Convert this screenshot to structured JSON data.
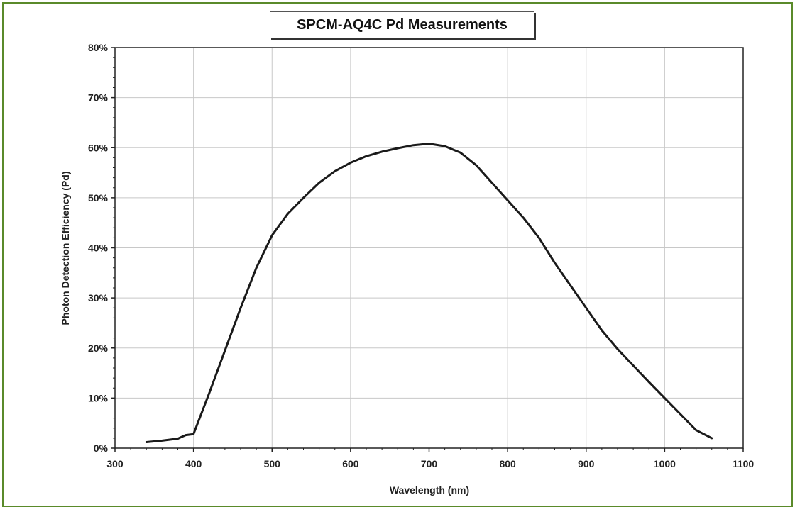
{
  "chart_data": {
    "type": "line",
    "title": "SPCM-AQ4C Pd Measurements",
    "xlabel": "Wavelength (nm)",
    "ylabel": "Photon Detection Efficiency  (Pd)",
    "xlim": [
      300,
      1100
    ],
    "ylim": [
      0,
      80
    ],
    "x_ticks": [
      300,
      400,
      500,
      600,
      700,
      800,
      900,
      1000,
      1100
    ],
    "x_tick_labels": [
      "300",
      "400",
      "500",
      "600",
      "700",
      "800",
      "900",
      "1000",
      "1100"
    ],
    "y_ticks": [
      0,
      10,
      20,
      30,
      40,
      50,
      60,
      70,
      80
    ],
    "y_tick_labels": [
      "0%",
      "10%",
      "20%",
      "30%",
      "40%",
      "50%",
      "60%",
      "70%",
      "80%"
    ],
    "grid": true,
    "legend": "none",
    "series": [
      {
        "color": "#1a1a1a",
        "points": [
          [
            340,
            1.2
          ],
          [
            360,
            1.5
          ],
          [
            380,
            1.9
          ],
          [
            390,
            2.6
          ],
          [
            400,
            2.8
          ],
          [
            420,
            11
          ],
          [
            440,
            19.5
          ],
          [
            460,
            28
          ],
          [
            480,
            36
          ],
          [
            500,
            42.5
          ],
          [
            520,
            46.8
          ],
          [
            540,
            50
          ],
          [
            560,
            53
          ],
          [
            580,
            55.3
          ],
          [
            600,
            57
          ],
          [
            620,
            58.3
          ],
          [
            640,
            59.2
          ],
          [
            660,
            59.9
          ],
          [
            680,
            60.5
          ],
          [
            700,
            60.8
          ],
          [
            720,
            60.3
          ],
          [
            740,
            59
          ],
          [
            760,
            56.5
          ],
          [
            780,
            53
          ],
          [
            800,
            49.5
          ],
          [
            820,
            46
          ],
          [
            840,
            42
          ],
          [
            850,
            39.5
          ],
          [
            860,
            37
          ],
          [
            880,
            32.5
          ],
          [
            900,
            28
          ],
          [
            920,
            23.5
          ],
          [
            940,
            19.8
          ],
          [
            960,
            16.5
          ],
          [
            980,
            13.2
          ],
          [
            1000,
            10
          ],
          [
            1020,
            6.8
          ],
          [
            1040,
            3.6
          ],
          [
            1060,
            2
          ]
        ]
      }
    ]
  }
}
